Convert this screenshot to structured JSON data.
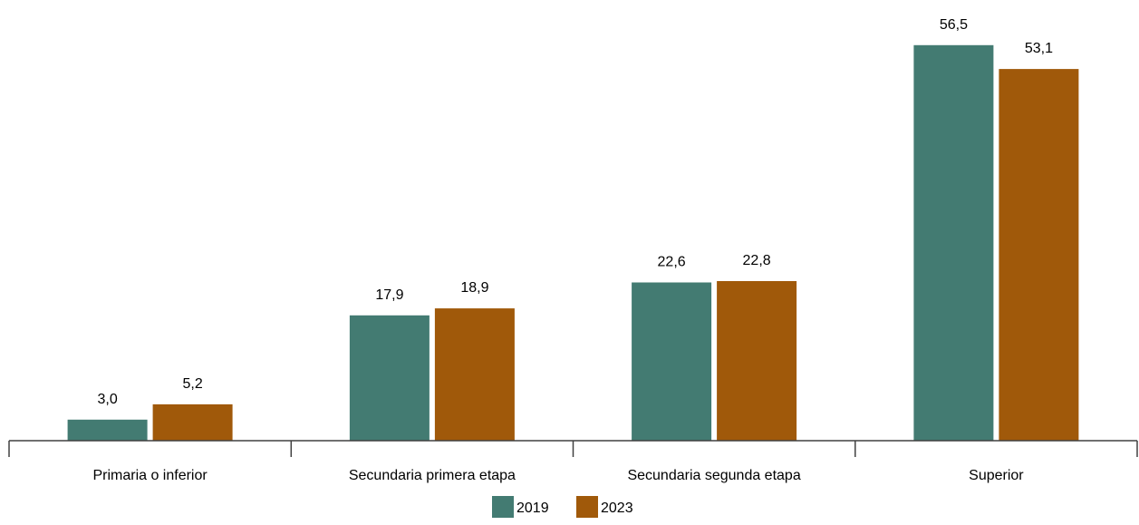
{
  "chart_data": {
    "type": "bar",
    "categories": [
      "Primaria o inferior",
      "Secundaria primera etapa",
      "Secundaria segunda etapa",
      "Superior"
    ],
    "series": [
      {
        "name": "2019",
        "color": "#437B72",
        "values": [
          3.0,
          17.9,
          22.6,
          56.5
        ],
        "labels": [
          "3,0",
          "17,9",
          "22,6",
          "56,5"
        ]
      },
      {
        "name": "2023",
        "color": "#A0590A",
        "values": [
          5.2,
          18.9,
          22.8,
          53.1
        ],
        "labels": [
          "5,2",
          "18,9",
          "22,8",
          "53,1"
        ]
      }
    ],
    "title": "",
    "xlabel": "",
    "ylabel": "",
    "ylim": [
      0,
      60
    ],
    "grid": false,
    "legend_position": "bottom-center",
    "axis_color": "#404040"
  }
}
